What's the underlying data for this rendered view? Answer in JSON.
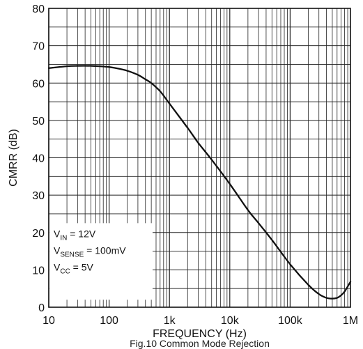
{
  "chart_data": {
    "type": "line",
    "xscale": "log",
    "xlim": [
      10,
      1000000
    ],
    "ylim": [
      0,
      80
    ],
    "xlabel": "FREQUENCY (Hz)",
    "ylabel": "CMRR (dB)",
    "grid": true,
    "x_tick_labels": [
      "10",
      "100",
      "1k",
      "10k",
      "100k",
      "1M"
    ],
    "y_tick_labels": [
      "0",
      "10",
      "20",
      "30",
      "40",
      "50",
      "60",
      "70",
      "80"
    ],
    "legend": {
      "placement": "bottom-left",
      "lines": [
        {
          "main": "V",
          "sub": "IN",
          "rest": " = 12V"
        },
        {
          "main": "V",
          "sub": "SENSE",
          "rest": " = 100mV"
        },
        {
          "main": "V",
          "sub": "CC",
          "rest": " = 5V"
        }
      ]
    },
    "series": [
      {
        "x": [
          10,
          20,
          30,
          50,
          70,
          100,
          150,
          200,
          300,
          400,
          500,
          700,
          1000,
          2000,
          3000,
          5000,
          10000,
          20000,
          30000,
          50000,
          100000,
          200000,
          300000,
          400000,
          500000,
          600000,
          700000,
          800000,
          1000000
        ],
        "y": [
          64,
          64.5,
          64.6,
          64.6,
          64.5,
          64.3,
          63.8,
          63.3,
          62.2,
          61.0,
          60.0,
          57.8,
          54.5,
          48.0,
          44.0,
          39.5,
          33.0,
          26.0,
          22.5,
          18.0,
          11.5,
          6.0,
          3.5,
          2.5,
          2.3,
          2.5,
          3.2,
          4.2,
          6.8
        ]
      }
    ],
    "caption": "Fig.10 Common Mode Rejection"
  }
}
